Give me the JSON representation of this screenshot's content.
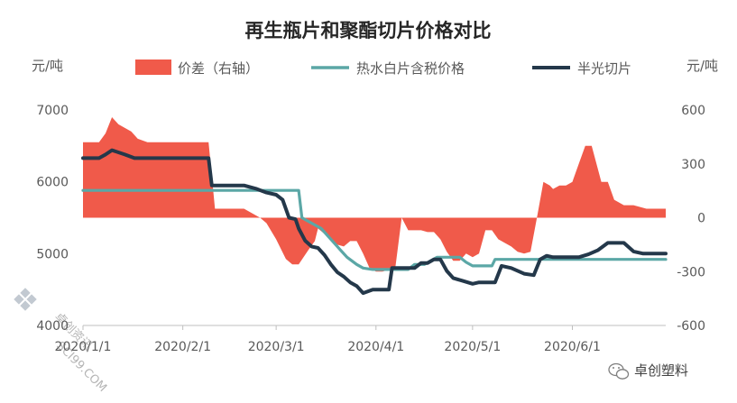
{
  "chart_data": {
    "type": "line",
    "title": "再生瓶片和聚酯切片价格对比",
    "ylabel_left": "元/吨",
    "ylabel_right": "元/吨",
    "ylim_left": [
      4000,
      7000
    ],
    "ylim_right": [
      -600,
      600
    ],
    "yticks_left": [
      "7000",
      "6000",
      "5000",
      "4000"
    ],
    "yticks_right": [
      "600",
      "300",
      "0",
      "-300",
      "-600"
    ],
    "x_start": "2020-01-01",
    "x_end": "2020-06-30",
    "xticks": [
      {
        "date": "2020-01-01",
        "label": "2020/1/1"
      },
      {
        "date": "2020-02-01",
        "label": "2020/2/1"
      },
      {
        "date": "2020-03-01",
        "label": "2020/3/1"
      },
      {
        "date": "2020-04-01",
        "label": "2020/4/1"
      },
      {
        "date": "2020-05-01",
        "label": "2020/5/1"
      },
      {
        "date": "2020-06-01",
        "label": "2020/6/1"
      }
    ],
    "legend_position": "top",
    "series": [
      {
        "name": "价差（右轴）",
        "type": "area",
        "axis": "right",
        "color": "#f05a4a",
        "x": [
          "2020-01-01",
          "2020-01-06",
          "2020-01-08",
          "2020-01-10",
          "2020-01-12",
          "2020-01-14",
          "2020-01-16",
          "2020-01-18",
          "2020-01-21",
          "2020-02-09",
          "2020-02-11",
          "2020-02-20",
          "2020-02-25",
          "2020-02-27",
          "2020-03-01",
          "2020-03-04",
          "2020-03-06",
          "2020-03-08",
          "2020-03-11",
          "2020-03-13",
          "2020-03-14",
          "2020-03-16",
          "2020-03-18",
          "2020-03-20",
          "2020-03-22",
          "2020-03-24",
          "2020-03-26",
          "2020-03-28",
          "2020-03-30",
          "2020-04-01",
          "2020-04-03",
          "2020-04-05",
          "2020-04-07",
          "2020-04-09",
          "2020-04-11",
          "2020-04-13",
          "2020-04-15",
          "2020-04-17",
          "2020-04-19",
          "2020-04-21",
          "2020-04-23",
          "2020-04-25",
          "2020-04-27",
          "2020-04-29",
          "2020-05-01",
          "2020-05-03",
          "2020-05-05",
          "2020-05-07",
          "2020-05-09",
          "2020-05-11",
          "2020-05-13",
          "2020-05-15",
          "2020-05-17",
          "2020-05-19",
          "2020-05-21",
          "2020-05-23",
          "2020-05-25",
          "2020-05-26",
          "2020-05-28",
          "2020-05-30",
          "2020-06-01",
          "2020-06-03",
          "2020-06-05",
          "2020-06-07",
          "2020-06-10",
          "2020-06-12",
          "2020-06-14",
          "2020-06-17",
          "2020-06-20",
          "2020-06-24",
          "2020-06-27",
          "2020-06-30"
        ],
        "values": [
          420,
          420,
          470,
          560,
          520,
          500,
          480,
          440,
          420,
          420,
          50,
          50,
          0,
          -30,
          -120,
          -230,
          -260,
          -260,
          -180,
          -130,
          -60,
          -90,
          -120,
          -150,
          -160,
          -130,
          -130,
          -200,
          -280,
          -300,
          -300,
          -290,
          -280,
          0,
          -70,
          -70,
          -70,
          -80,
          -80,
          -120,
          -190,
          -240,
          -240,
          -200,
          -220,
          -200,
          -70,
          -70,
          -120,
          -140,
          -160,
          -190,
          -200,
          -190,
          0,
          200,
          180,
          160,
          180,
          180,
          200,
          300,
          400,
          400,
          200,
          200,
          100,
          70,
          70,
          50,
          50,
          50
        ]
      },
      {
        "name": "热水白片含税价格",
        "type": "line",
        "axis": "left",
        "color": "#5ba7a6",
        "x": [
          "2020-01-01",
          "2020-03-08",
          "2020-03-09",
          "2020-03-11",
          "2020-03-13",
          "2020-03-15",
          "2020-03-17",
          "2020-03-19",
          "2020-03-21",
          "2020-03-23",
          "2020-03-26",
          "2020-03-28",
          "2020-03-31",
          "2020-04-11",
          "2020-04-13",
          "2020-04-16",
          "2020-04-18",
          "2020-04-20",
          "2020-04-22",
          "2020-04-27",
          "2020-04-29",
          "2020-05-01",
          "2020-05-07",
          "2020-05-08",
          "2020-06-30"
        ],
        "values": [
          5880,
          5880,
          5500,
          5450,
          5400,
          5350,
          5250,
          5150,
          5050,
          4950,
          4850,
          4800,
          4780,
          4780,
          4850,
          4850,
          4900,
          4950,
          4950,
          4950,
          4880,
          4830,
          4830,
          4920,
          4920
        ]
      },
      {
        "name": "半光切片",
        "type": "line",
        "axis": "left",
        "color": "#24384a",
        "x": [
          "2020-01-01",
          "2020-01-06",
          "2020-01-08",
          "2020-01-10",
          "2020-01-14",
          "2020-01-17",
          "2020-02-09",
          "2020-02-10",
          "2020-02-20",
          "2020-02-24",
          "2020-02-27",
          "2020-03-01",
          "2020-03-03",
          "2020-03-05",
          "2020-03-07",
          "2020-03-08",
          "2020-03-10",
          "2020-03-12",
          "2020-03-14",
          "2020-03-16",
          "2020-03-18",
          "2020-03-20",
          "2020-03-22",
          "2020-03-24",
          "2020-03-26",
          "2020-03-28",
          "2020-03-31",
          "2020-04-02",
          "2020-04-05",
          "2020-04-06",
          "2020-04-13",
          "2020-04-15",
          "2020-04-17",
          "2020-04-19",
          "2020-04-21",
          "2020-04-23",
          "2020-04-25",
          "2020-04-28",
          "2020-05-01",
          "2020-05-03",
          "2020-05-08",
          "2020-05-10",
          "2020-05-13",
          "2020-05-17",
          "2020-05-20",
          "2020-05-22",
          "2020-05-24",
          "2020-05-26",
          "2020-06-03",
          "2020-06-06",
          "2020-06-09",
          "2020-06-12",
          "2020-06-17",
          "2020-06-20",
          "2020-06-23",
          "2020-06-26",
          "2020-06-30"
        ],
        "values": [
          6330,
          6330,
          6380,
          6440,
          6380,
          6330,
          6330,
          5950,
          5950,
          5900,
          5850,
          5820,
          5750,
          5500,
          5480,
          5350,
          5180,
          5100,
          5080,
          4980,
          4850,
          4740,
          4680,
          4600,
          4550,
          4450,
          4500,
          4500,
          4500,
          4800,
          4800,
          4870,
          4870,
          4920,
          4920,
          4760,
          4660,
          4620,
          4580,
          4600,
          4600,
          4830,
          4800,
          4720,
          4700,
          4920,
          4970,
          4950,
          4950,
          4990,
          5050,
          5150,
          5150,
          5030,
          5000,
          5000,
          5000
        ]
      }
    ]
  },
  "watermarks": {
    "left_text_1": "卓创资讯",
    "left_text_2": "SCI99.COM",
    "bottom_right_brand": "卓创塑料"
  }
}
